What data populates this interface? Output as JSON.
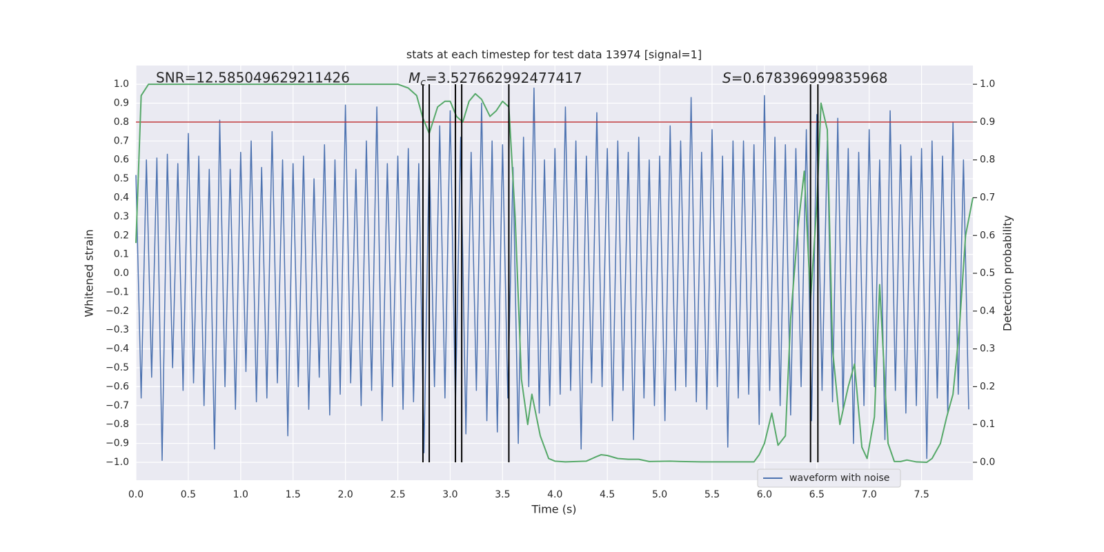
{
  "chart_data": {
    "type": "line",
    "title": "stats at each timestep for test data 13974 [signal=1]",
    "xlabel": "Time (s)",
    "ylabel": "Whitened strain",
    "y2label": "Detection probability",
    "annotations": {
      "snr": "SNR=12.585049629211426",
      "mc": {
        "symbol": "M",
        "subscript": "c",
        "text": "=3.527662992477417"
      },
      "s": {
        "symbol": "S",
        "text": "=0.678396999835968"
      }
    },
    "xlim": [
      0,
      7.99
    ],
    "xticks": [
      {
        "value": 0,
        "label": "0.0"
      },
      0.5,
      {
        "value": 1,
        "label": "1.0"
      },
      1.5,
      {
        "value": 2,
        "label": "2.0"
      },
      2.5,
      {
        "value": 3,
        "label": "3.0"
      },
      3.5,
      {
        "value": 4,
        "label": "4.0"
      },
      4.5,
      {
        "value": 5,
        "label": "5.0"
      },
      5.5,
      {
        "value": 6,
        "label": "6.0"
      },
      6.5,
      {
        "value": 7,
        "label": "7.0"
      },
      7.5
    ],
    "ylim": [
      -1.095,
      1.099
    ],
    "yticks": [
      {
        "value": -1,
        "label": "−1.0"
      },
      {
        "value": -0.9,
        "label": "−0.9"
      },
      {
        "value": -0.8,
        "label": "−0.8"
      },
      {
        "value": -0.7,
        "label": "−0.7"
      },
      {
        "value": -0.6,
        "label": "−0.6"
      },
      {
        "value": -0.5,
        "label": "−0.5"
      },
      {
        "value": -0.4,
        "label": "−0.4"
      },
      {
        "value": -0.3,
        "label": "−0.3"
      },
      {
        "value": -0.2,
        "label": "−0.2"
      },
      {
        "value": -0.1,
        "label": "−0.1"
      },
      {
        "value": 0,
        "label": "0.0"
      },
      0.1,
      0.2,
      0.3,
      0.4,
      0.5,
      0.6,
      0.7,
      0.8,
      0.9,
      {
        "value": 1,
        "label": "1.0"
      }
    ],
    "y2lim": [
      -0.0475,
      1.0495
    ],
    "y2ticks": [
      {
        "value": 0,
        "label": "0.0"
      },
      0.1,
      0.2,
      0.3,
      0.4,
      0.5,
      0.6,
      0.7,
      0.8,
      0.9,
      {
        "value": 1,
        "label": "1.0"
      }
    ],
    "grid": true,
    "legend": "lower right",
    "threshold": {
      "y": 0.8,
      "color": "#c0393b"
    },
    "vlines": {
      "x": [
        2.74,
        2.8,
        3.05,
        3.11,
        3.56,
        6.44,
        6.51
      ],
      "y2_range": [
        0,
        1
      ],
      "color": "#000000"
    },
    "series": [
      {
        "name": "waveform with noise",
        "color": "#4c72b0",
        "x": [
          0,
          0.05,
          0.1,
          0.15,
          0.2,
          0.25,
          0.3,
          0.35,
          0.4,
          0.45,
          0.5,
          0.55,
          0.6,
          0.65,
          0.7,
          0.75,
          0.8,
          0.85,
          0.9,
          0.95,
          1,
          1.05,
          1.1,
          1.15,
          1.2,
          1.25,
          1.3,
          1.35,
          1.4,
          1.45,
          1.5,
          1.55,
          1.6,
          1.65,
          1.7,
          1.75,
          1.8,
          1.85,
          1.9,
          1.95,
          2,
          2.05,
          2.1,
          2.15,
          2.2,
          2.25,
          2.3,
          2.35,
          2.4,
          2.45,
          2.5,
          2.55,
          2.6,
          2.65,
          2.7,
          2.75,
          2.8,
          2.85,
          2.9,
          2.95,
          3,
          3.05,
          3.1,
          3.15,
          3.2,
          3.25,
          3.3,
          3.35,
          3.4,
          3.45,
          3.5,
          3.55,
          3.6,
          3.65,
          3.7,
          3.75,
          3.8,
          3.85,
          3.9,
          3.95,
          4,
          4.05,
          4.1,
          4.15,
          4.2,
          4.25,
          4.3,
          4.35,
          4.4,
          4.45,
          4.5,
          4.55,
          4.6,
          4.65,
          4.7,
          4.75,
          4.8,
          4.85,
          4.9,
          4.95,
          5,
          5.05,
          5.1,
          5.15,
          5.2,
          5.25,
          5.3,
          5.35,
          5.4,
          5.45,
          5.5,
          5.55,
          5.6,
          5.65,
          5.7,
          5.75,
          5.8,
          5.85,
          5.9,
          5.95,
          6,
          6.05,
          6.1,
          6.15,
          6.2,
          6.25,
          6.3,
          6.35,
          6.4,
          6.45,
          6.5,
          6.55,
          6.6,
          6.65,
          6.7,
          6.75,
          6.8,
          6.85,
          6.9,
          6.95,
          7,
          7.05,
          7.1,
          7.15,
          7.2,
          7.25,
          7.3,
          7.35,
          7.4,
          7.45,
          7.5,
          7.55,
          7.6,
          7.65,
          7.7,
          7.75,
          7.8,
          7.85,
          7.9,
          7.95
        ],
        "values": [
          0.52,
          -0.66,
          0.6,
          -0.55,
          0.61,
          -0.99,
          0.63,
          -0.5,
          0.58,
          -0.62,
          0.74,
          -0.58,
          0.62,
          -0.7,
          0.55,
          -0.93,
          0.81,
          -0.6,
          0.55,
          -0.72,
          0.64,
          -0.52,
          0.7,
          -0.68,
          0.56,
          -0.66,
          0.75,
          -0.58,
          0.6,
          -0.86,
          0.58,
          -0.6,
          0.62,
          -0.72,
          0.5,
          -0.55,
          0.68,
          -0.75,
          0.6,
          -0.64,
          0.89,
          -0.58,
          0.55,
          -0.7,
          0.7,
          -0.62,
          0.88,
          -0.78,
          0.58,
          -0.6,
          0.62,
          -0.72,
          0.66,
          -0.68,
          0.58,
          -0.95,
          0.65,
          -0.6,
          0.78,
          -0.66,
          0.86,
          -0.7,
          0.72,
          -0.85,
          0.64,
          -0.62,
          0.9,
          -0.78,
          0.7,
          -0.84,
          0.68,
          -0.66,
          0.56,
          -0.9,
          0.72,
          -0.6,
          0.98,
          -0.74,
          0.6,
          -0.7,
          0.66,
          -0.64,
          0.88,
          -0.62,
          0.7,
          -0.93,
          0.62,
          -0.58,
          0.85,
          -0.6,
          0.66,
          -0.78,
          0.7,
          -0.62,
          0.64,
          -0.88,
          0.72,
          -0.66,
          0.6,
          -0.7,
          0.62,
          -0.78,
          0.78,
          -0.62,
          0.7,
          -0.6,
          0.93,
          -0.68,
          0.64,
          -0.72,
          0.76,
          -0.6,
          0.62,
          -0.92,
          0.7,
          -0.66,
          0.7,
          -0.64,
          0.68,
          -0.8,
          0.94,
          -0.62,
          0.72,
          -0.7,
          0.68,
          -0.75,
          0.66,
          -0.6,
          0.76,
          -0.78,
          0.84,
          -0.62,
          0.7,
          -0.68,
          0.82,
          -0.72,
          0.66,
          -0.9,
          0.64,
          -0.7,
          0.76,
          -0.6,
          0.6,
          -0.88,
          0.86,
          -0.62,
          0.68,
          -0.74,
          0.62,
          -0.7,
          0.66,
          -0.98,
          0.7,
          -0.66,
          0.62,
          -0.74,
          0.8,
          -0.64,
          0.6,
          -0.72
        ]
      },
      {
        "color": "#55a868",
        "axis": "y2",
        "x": [
          0,
          0.05,
          0.12,
          2.5,
          2.6,
          2.68,
          2.74,
          2.8,
          2.88,
          2.95,
          3,
          3.06,
          3.12,
          3.18,
          3.24,
          3.3,
          3.38,
          3.44,
          3.5,
          3.56,
          3.62,
          3.68,
          3.74,
          3.78,
          3.86,
          3.94,
          4,
          4.1,
          4.3,
          4.38,
          4.44,
          4.5,
          4.6,
          4.7,
          4.8,
          4.9,
          5.1,
          5.2,
          5.4,
          5.9,
          5.95,
          6,
          6.07,
          6.13,
          6.2,
          6.25,
          6.32,
          6.38,
          6.44,
          6.5,
          6.54,
          6.6,
          6.65,
          6.72,
          6.8,
          6.86,
          6.93,
          6.98,
          7.05,
          7.1,
          7.18,
          7.24,
          7.3,
          7.36,
          7.45,
          7.55,
          7.6,
          7.68,
          7.74,
          7.8,
          7.86,
          7.92,
          7.99
        ],
        "values": [
          0.58,
          0.97,
          1,
          1,
          0.99,
          0.97,
          0.91,
          0.87,
          0.94,
          0.955,
          0.955,
          0.915,
          0.9,
          0.955,
          0.975,
          0.96,
          0.915,
          0.93,
          0.955,
          0.94,
          0.65,
          0.22,
          0.1,
          0.18,
          0.07,
          0.01,
          0.003,
          0.001,
          0.003,
          0.013,
          0.02,
          0.018,
          0.01,
          0.008,
          0.008,
          0.002,
          0.003,
          0.002,
          0.001,
          0.001,
          0.02,
          0.05,
          0.13,
          0.045,
          0.07,
          0.38,
          0.62,
          0.77,
          0.43,
          0.68,
          0.95,
          0.88,
          0.3,
          0.1,
          0.2,
          0.26,
          0.04,
          0.01,
          0.12,
          0.47,
          0.05,
          0.002,
          0.002,
          0.006,
          0.001,
          0,
          0.01,
          0.05,
          0.12,
          0.18,
          0.35,
          0.6,
          0.7
        ]
      }
    ]
  }
}
